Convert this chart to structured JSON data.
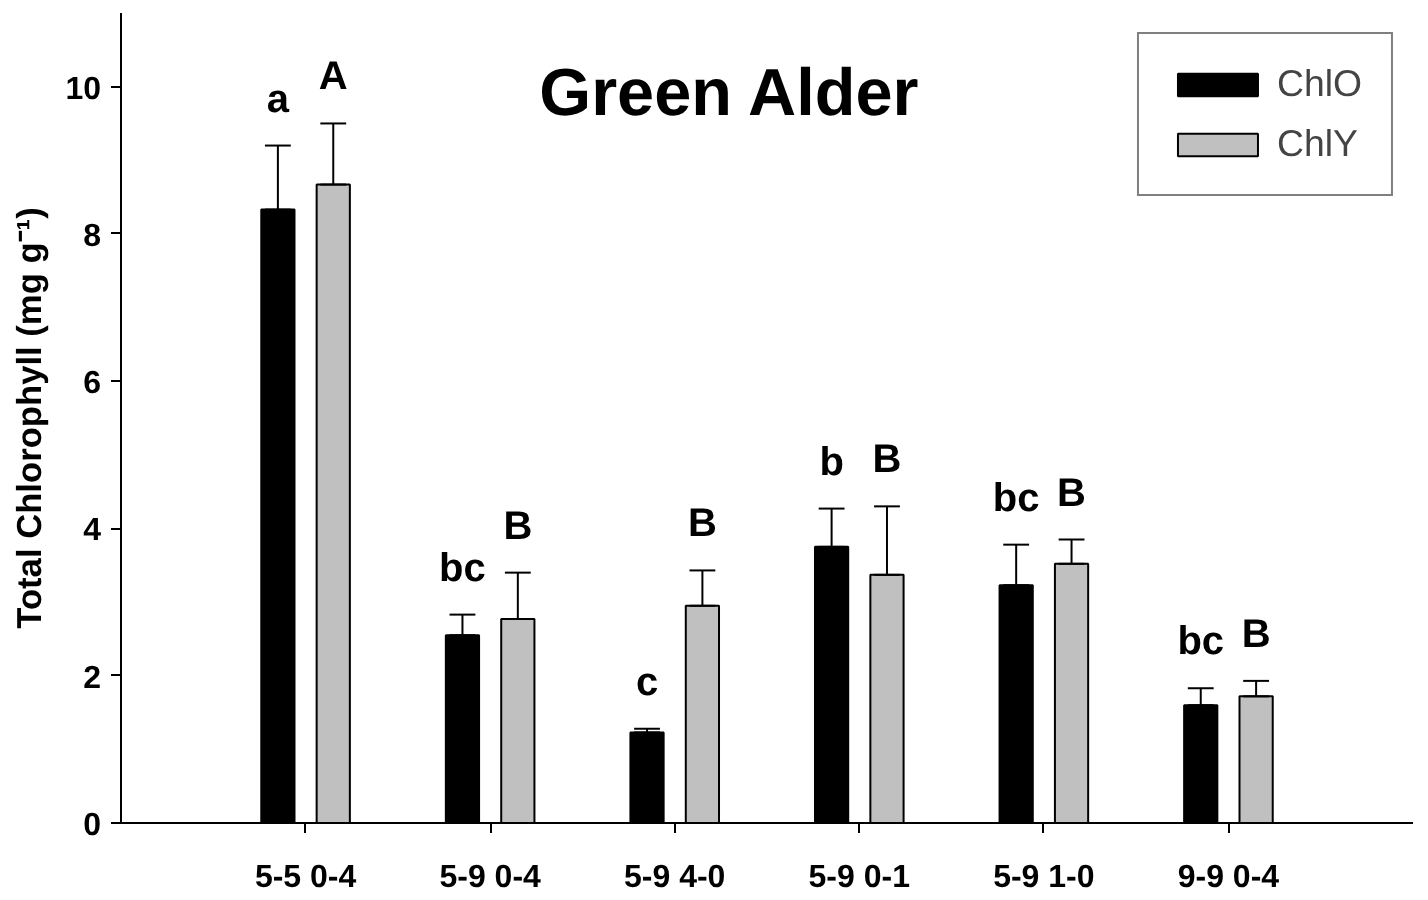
{
  "chart_data": {
    "type": "bar",
    "title": "Green Alder",
    "ylabel": "Total Chlorophyll (mg g⁻¹)",
    "categories": [
      "5-5 0-4",
      "5-9 0-4",
      "5-9 4-0",
      "5-9 0-1",
      "5-9 1-0",
      "9-9 0-4"
    ],
    "series": [
      {
        "name": "ChlO",
        "color": "#000000",
        "values": [
          8.33,
          2.55,
          1.23,
          3.75,
          3.23,
          1.6
        ],
        "errors": [
          [
            8.33,
            9.2
          ],
          [
            2.55,
            2.83
          ],
          [
            1.23,
            1.28
          ],
          [
            3.75,
            4.27
          ],
          [
            3.23,
            3.78
          ],
          [
            1.6,
            1.83
          ]
        ]
      },
      {
        "name": "ChlY",
        "color": "#c0c0c0",
        "values": [
          8.67,
          2.77,
          2.95,
          3.37,
          3.52,
          1.72
        ],
        "errors": [
          [
            8.67,
            9.5
          ],
          [
            2.77,
            3.4
          ],
          [
            2.95,
            3.43
          ],
          [
            3.37,
            4.3
          ],
          [
            3.52,
            3.85
          ],
          [
            1.72,
            1.93
          ]
        ]
      }
    ],
    "ylim": [
      0,
      11
    ],
    "yticks": [
      0,
      2,
      4,
      6,
      8,
      10
    ],
    "grid": false,
    "legend": "top right",
    "annotations": [
      "a",
      "A",
      "bc",
      "B",
      "c",
      "B",
      "b",
      "B",
      "bc",
      "B",
      "bc",
      "B"
    ]
  }
}
